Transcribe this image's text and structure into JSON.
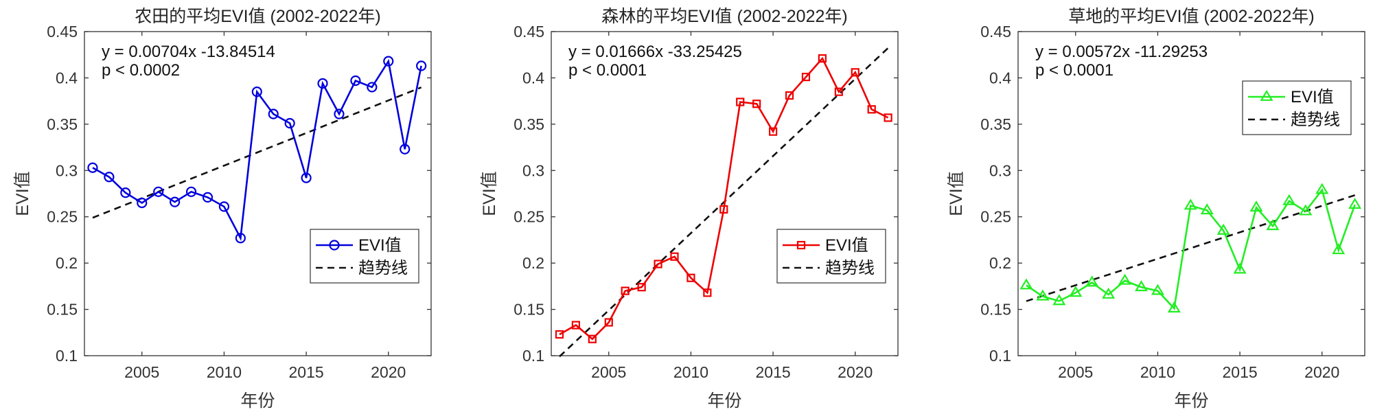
{
  "chart_data": [
    {
      "type": "line",
      "title": "农田的平均EVI值 (2002-2022年)",
      "xlabel": "年份",
      "ylabel": "EVI值",
      "xlim": [
        2001.5,
        2022.6
      ],
      "ylim": [
        0.1,
        0.45
      ],
      "xticks": [
        2005,
        2010,
        2015,
        2020
      ],
      "yticks": [
        0.1,
        0.15,
        0.2,
        0.25,
        0.3,
        0.35,
        0.4,
        0.45
      ],
      "ytick_labels": [
        "0.1",
        "0.15",
        "0.2",
        "0.25",
        "0.3",
        "0.35",
        "0.4",
        "0.45"
      ],
      "color": "#0000dd",
      "marker": "circle",
      "x": [
        2002,
        2003,
        2004,
        2005,
        2006,
        2007,
        2008,
        2009,
        2010,
        2011,
        2012,
        2013,
        2014,
        2015,
        2016,
        2017,
        2018,
        2019,
        2020,
        2021,
        2022
      ],
      "values": [
        0.303,
        0.293,
        0.276,
        0.265,
        0.277,
        0.266,
        0.277,
        0.271,
        0.261,
        0.227,
        0.385,
        0.361,
        0.351,
        0.292,
        0.394,
        0.361,
        0.397,
        0.39,
        0.418,
        0.323,
        0.413
      ],
      "trend": {
        "slope": 0.00704,
        "intercept": -13.84514
      },
      "annotation": [
        "y = 0.00704x -13.84514",
        "p < 0.0002"
      ],
      "legend": {
        "series": "EVI值",
        "trend": "趋势线",
        "position": "bottom-right"
      }
    },
    {
      "type": "line",
      "title": "森林的平均EVI值 (2002-2022年)",
      "xlabel": "年份",
      "ylabel": "EVI值",
      "xlim": [
        2001.5,
        2022.6
      ],
      "ylim": [
        0.1,
        0.45
      ],
      "xticks": [
        2005,
        2010,
        2015,
        2020
      ],
      "yticks": [
        0.1,
        0.15,
        0.2,
        0.25,
        0.3,
        0.35,
        0.4,
        0.45
      ],
      "ytick_labels": [
        "0.1",
        "0.15",
        "0.2",
        "0.25",
        "0.3",
        "0.35",
        "0.4",
        "0.45"
      ],
      "color": "#ee0000",
      "marker": "square",
      "x": [
        2002,
        2003,
        2004,
        2005,
        2006,
        2007,
        2008,
        2009,
        2010,
        2011,
        2012,
        2013,
        2014,
        2015,
        2016,
        2017,
        2018,
        2019,
        2020,
        2021,
        2022
      ],
      "values": [
        0.123,
        0.133,
        0.118,
        0.136,
        0.17,
        0.174,
        0.199,
        0.207,
        0.184,
        0.168,
        0.258,
        0.374,
        0.372,
        0.342,
        0.381,
        0.401,
        0.421,
        0.385,
        0.406,
        0.366,
        0.357
      ],
      "trend": {
        "slope": 0.01666,
        "intercept": -33.25425
      },
      "annotation": [
        "y = 0.01666x -33.25425",
        "p < 0.0001"
      ],
      "legend": {
        "series": "EVI值",
        "trend": "趋势线",
        "position": "bottom-right"
      }
    },
    {
      "type": "line",
      "title": "草地的平均EVI值 (2002-2022年)",
      "xlabel": "年份",
      "ylabel": "EVI值",
      "xlim": [
        2001.5,
        2022.6
      ],
      "ylim": [
        0.1,
        0.45
      ],
      "xticks": [
        2005,
        2010,
        2015,
        2020
      ],
      "yticks": [
        0.1,
        0.15,
        0.2,
        0.25,
        0.3,
        0.35,
        0.4,
        0.45
      ],
      "ytick_labels": [
        "0.1",
        "0.15",
        "0.2",
        "0.25",
        "0.3",
        "0.35",
        "0.4",
        "0.45"
      ],
      "color": "#22ee22",
      "marker": "triangle",
      "x": [
        2002,
        2003,
        2004,
        2005,
        2006,
        2007,
        2008,
        2009,
        2010,
        2011,
        2012,
        2013,
        2014,
        2015,
        2016,
        2017,
        2018,
        2019,
        2020,
        2021,
        2022
      ],
      "values": [
        0.176,
        0.164,
        0.159,
        0.168,
        0.179,
        0.166,
        0.181,
        0.174,
        0.17,
        0.151,
        0.262,
        0.257,
        0.235,
        0.193,
        0.26,
        0.24,
        0.267,
        0.256,
        0.279,
        0.214,
        0.263
      ],
      "trend": {
        "slope": 0.00572,
        "intercept": -11.29253
      },
      "annotation": [
        "y = 0.00572x -11.29253",
        "p < 0.0001"
      ],
      "legend": {
        "series": "EVI值",
        "trend": "趋势线",
        "position": "top-right"
      }
    }
  ]
}
